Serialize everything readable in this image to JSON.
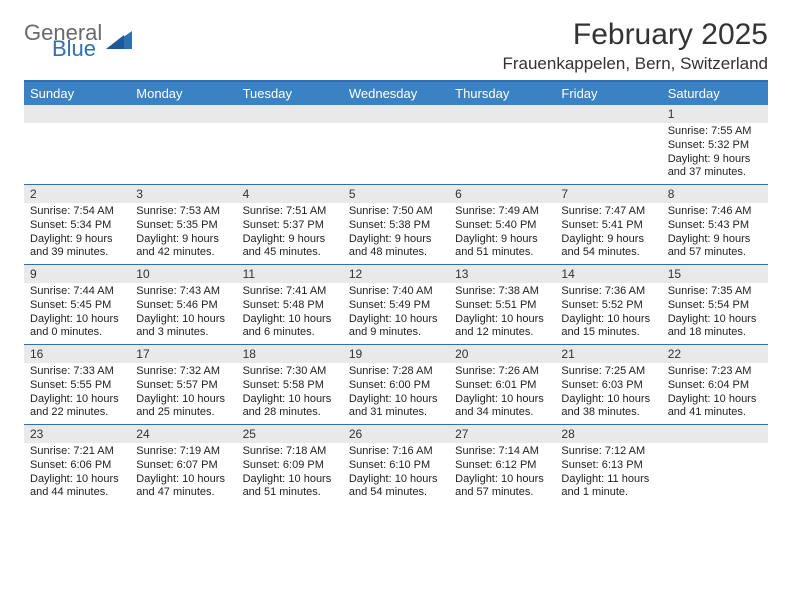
{
  "brand": {
    "part1": "General",
    "part2": "Blue"
  },
  "title": "February 2025",
  "location": "Frauenkappelen, Bern, Switzerland",
  "colors": {
    "header_bg": "#3b82c4",
    "header_rule": "#2f6fb3",
    "daynum_bg": "#e9e9e9",
    "text": "#222222",
    "brand_gray": "#6a6a6a",
    "brand_blue": "#2f6fb3"
  },
  "day_headers": [
    "Sunday",
    "Monday",
    "Tuesday",
    "Wednesday",
    "Thursday",
    "Friday",
    "Saturday"
  ],
  "weeks": [
    [
      {
        "n": "",
        "sr": "",
        "ss": "",
        "dl": ""
      },
      {
        "n": "",
        "sr": "",
        "ss": "",
        "dl": ""
      },
      {
        "n": "",
        "sr": "",
        "ss": "",
        "dl": ""
      },
      {
        "n": "",
        "sr": "",
        "ss": "",
        "dl": ""
      },
      {
        "n": "",
        "sr": "",
        "ss": "",
        "dl": ""
      },
      {
        "n": "",
        "sr": "",
        "ss": "",
        "dl": ""
      },
      {
        "n": "1",
        "sr": "Sunrise: 7:55 AM",
        "ss": "Sunset: 5:32 PM",
        "dl": "Daylight: 9 hours and 37 minutes."
      }
    ],
    [
      {
        "n": "2",
        "sr": "Sunrise: 7:54 AM",
        "ss": "Sunset: 5:34 PM",
        "dl": "Daylight: 9 hours and 39 minutes."
      },
      {
        "n": "3",
        "sr": "Sunrise: 7:53 AM",
        "ss": "Sunset: 5:35 PM",
        "dl": "Daylight: 9 hours and 42 minutes."
      },
      {
        "n": "4",
        "sr": "Sunrise: 7:51 AM",
        "ss": "Sunset: 5:37 PM",
        "dl": "Daylight: 9 hours and 45 minutes."
      },
      {
        "n": "5",
        "sr": "Sunrise: 7:50 AM",
        "ss": "Sunset: 5:38 PM",
        "dl": "Daylight: 9 hours and 48 minutes."
      },
      {
        "n": "6",
        "sr": "Sunrise: 7:49 AM",
        "ss": "Sunset: 5:40 PM",
        "dl": "Daylight: 9 hours and 51 minutes."
      },
      {
        "n": "7",
        "sr": "Sunrise: 7:47 AM",
        "ss": "Sunset: 5:41 PM",
        "dl": "Daylight: 9 hours and 54 minutes."
      },
      {
        "n": "8",
        "sr": "Sunrise: 7:46 AM",
        "ss": "Sunset: 5:43 PM",
        "dl": "Daylight: 9 hours and 57 minutes."
      }
    ],
    [
      {
        "n": "9",
        "sr": "Sunrise: 7:44 AM",
        "ss": "Sunset: 5:45 PM",
        "dl": "Daylight: 10 hours and 0 minutes."
      },
      {
        "n": "10",
        "sr": "Sunrise: 7:43 AM",
        "ss": "Sunset: 5:46 PM",
        "dl": "Daylight: 10 hours and 3 minutes."
      },
      {
        "n": "11",
        "sr": "Sunrise: 7:41 AM",
        "ss": "Sunset: 5:48 PM",
        "dl": "Daylight: 10 hours and 6 minutes."
      },
      {
        "n": "12",
        "sr": "Sunrise: 7:40 AM",
        "ss": "Sunset: 5:49 PM",
        "dl": "Daylight: 10 hours and 9 minutes."
      },
      {
        "n": "13",
        "sr": "Sunrise: 7:38 AM",
        "ss": "Sunset: 5:51 PM",
        "dl": "Daylight: 10 hours and 12 minutes."
      },
      {
        "n": "14",
        "sr": "Sunrise: 7:36 AM",
        "ss": "Sunset: 5:52 PM",
        "dl": "Daylight: 10 hours and 15 minutes."
      },
      {
        "n": "15",
        "sr": "Sunrise: 7:35 AM",
        "ss": "Sunset: 5:54 PM",
        "dl": "Daylight: 10 hours and 18 minutes."
      }
    ],
    [
      {
        "n": "16",
        "sr": "Sunrise: 7:33 AM",
        "ss": "Sunset: 5:55 PM",
        "dl": "Daylight: 10 hours and 22 minutes."
      },
      {
        "n": "17",
        "sr": "Sunrise: 7:32 AM",
        "ss": "Sunset: 5:57 PM",
        "dl": "Daylight: 10 hours and 25 minutes."
      },
      {
        "n": "18",
        "sr": "Sunrise: 7:30 AM",
        "ss": "Sunset: 5:58 PM",
        "dl": "Daylight: 10 hours and 28 minutes."
      },
      {
        "n": "19",
        "sr": "Sunrise: 7:28 AM",
        "ss": "Sunset: 6:00 PM",
        "dl": "Daylight: 10 hours and 31 minutes."
      },
      {
        "n": "20",
        "sr": "Sunrise: 7:26 AM",
        "ss": "Sunset: 6:01 PM",
        "dl": "Daylight: 10 hours and 34 minutes."
      },
      {
        "n": "21",
        "sr": "Sunrise: 7:25 AM",
        "ss": "Sunset: 6:03 PM",
        "dl": "Daylight: 10 hours and 38 minutes."
      },
      {
        "n": "22",
        "sr": "Sunrise: 7:23 AM",
        "ss": "Sunset: 6:04 PM",
        "dl": "Daylight: 10 hours and 41 minutes."
      }
    ],
    [
      {
        "n": "23",
        "sr": "Sunrise: 7:21 AM",
        "ss": "Sunset: 6:06 PM",
        "dl": "Daylight: 10 hours and 44 minutes."
      },
      {
        "n": "24",
        "sr": "Sunrise: 7:19 AM",
        "ss": "Sunset: 6:07 PM",
        "dl": "Daylight: 10 hours and 47 minutes."
      },
      {
        "n": "25",
        "sr": "Sunrise: 7:18 AM",
        "ss": "Sunset: 6:09 PM",
        "dl": "Daylight: 10 hours and 51 minutes."
      },
      {
        "n": "26",
        "sr": "Sunrise: 7:16 AM",
        "ss": "Sunset: 6:10 PM",
        "dl": "Daylight: 10 hours and 54 minutes."
      },
      {
        "n": "27",
        "sr": "Sunrise: 7:14 AM",
        "ss": "Sunset: 6:12 PM",
        "dl": "Daylight: 10 hours and 57 minutes."
      },
      {
        "n": "28",
        "sr": "Sunrise: 7:12 AM",
        "ss": "Sunset: 6:13 PM",
        "dl": "Daylight: 11 hours and 1 minute."
      },
      {
        "n": "",
        "sr": "",
        "ss": "",
        "dl": ""
      }
    ]
  ]
}
